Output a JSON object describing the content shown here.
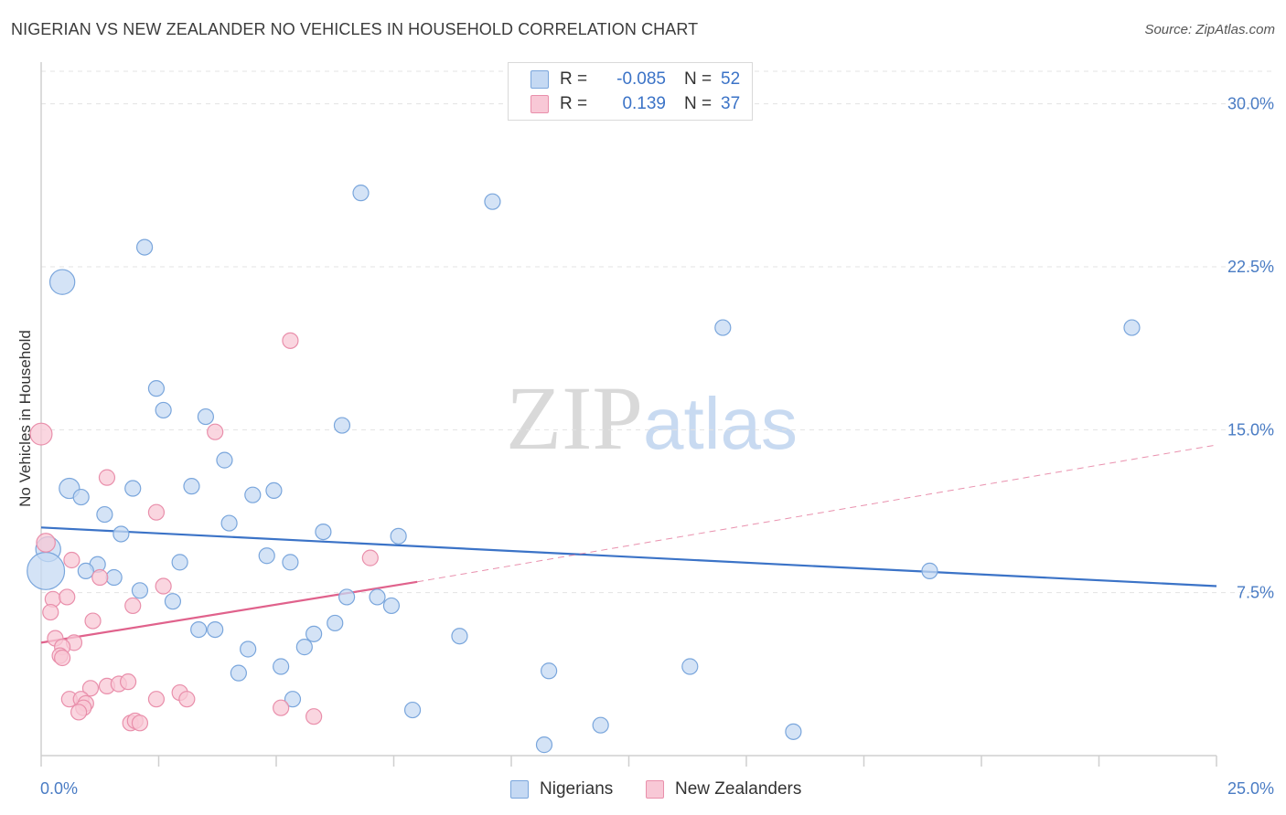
{
  "title": "NIGERIAN VS NEW ZEALANDER NO VEHICLES IN HOUSEHOLD CORRELATION CHART",
  "source": "Source: ZipAtlas.com",
  "watermark": {
    "zip": "ZIP",
    "atlas": "atlas"
  },
  "legend": {
    "rows": [
      {
        "label": "R =",
        "r": "-0.085",
        "n_label": "N =",
        "n": "52"
      },
      {
        "label": "R =",
        "r": "0.139",
        "n_label": "N =",
        "n": "37"
      }
    ]
  },
  "bottom_legend": {
    "nigerians": "Nigerians",
    "new_zealanders": "New Zealanders"
  },
  "colors": {
    "blue_fill": "#c5d9f3",
    "blue_stroke": "#7aa6dc",
    "blue_line": "#3b73c7",
    "pink_fill": "#f8c8d6",
    "pink_stroke": "#e98fab",
    "pink_line": "#e0628c",
    "grid": "#e3e3e3",
    "axis_text": "#4a7cc4"
  },
  "chart_data": {
    "type": "scatter",
    "title": "NIGERIAN VS NEW ZEALANDER NO VEHICLES IN HOUSEHOLD CORRELATION CHART",
    "xlabel": "",
    "ylabel": "No Vehicles in Household",
    "xlim": [
      0,
      25
    ],
    "ylim": [
      0,
      31.5
    ],
    "x_tick_labels": [
      "0.0%",
      "25.0%"
    ],
    "y_ticks": [
      7.5,
      15.0,
      22.5,
      30.0
    ],
    "y_tick_labels": [
      "7.5%",
      "15.0%",
      "22.5%",
      "30.0%"
    ],
    "series": [
      {
        "name": "Nigerians",
        "r": -0.085,
        "n": 52,
        "trend": {
          "x": [
            0,
            25
          ],
          "y": [
            10.5,
            7.8
          ]
        },
        "points": [
          [
            0.45,
            21.8,
            1.6
          ],
          [
            0.15,
            9.5,
            1.6
          ],
          [
            0.1,
            8.5,
            2.4
          ],
          [
            6.8,
            25.9,
            1
          ],
          [
            9.6,
            25.5,
            1
          ],
          [
            2.2,
            23.4,
            1
          ],
          [
            14.5,
            19.7,
            1
          ],
          [
            23.2,
            19.7,
            1
          ],
          [
            2.45,
            16.9,
            1
          ],
          [
            2.6,
            15.9,
            1
          ],
          [
            3.5,
            15.6,
            1
          ],
          [
            6.4,
            15.2,
            1
          ],
          [
            3.9,
            13.6,
            1
          ],
          [
            0.6,
            12.3,
            1.3
          ],
          [
            0.85,
            11.9,
            1
          ],
          [
            1.95,
            12.3,
            1
          ],
          [
            3.2,
            12.4,
            1
          ],
          [
            4.5,
            12.0,
            1
          ],
          [
            4.95,
            12.2,
            1
          ],
          [
            1.35,
            11.1,
            1
          ],
          [
            4.0,
            10.7,
            1
          ],
          [
            1.7,
            10.2,
            1
          ],
          [
            6.0,
            10.3,
            1
          ],
          [
            7.6,
            10.1,
            1
          ],
          [
            1.2,
            8.8,
            1
          ],
          [
            2.95,
            8.9,
            1
          ],
          [
            4.8,
            9.2,
            1
          ],
          [
            5.3,
            8.9,
            1
          ],
          [
            0.95,
            8.5,
            1
          ],
          [
            1.55,
            8.2,
            1
          ],
          [
            2.1,
            7.6,
            1
          ],
          [
            2.8,
            7.1,
            1
          ],
          [
            6.5,
            7.3,
            1
          ],
          [
            7.15,
            7.3,
            1
          ],
          [
            7.45,
            6.9,
            1
          ],
          [
            3.35,
            5.8,
            1
          ],
          [
            3.7,
            5.8,
            1
          ],
          [
            5.8,
            5.6,
            1
          ],
          [
            6.25,
            6.1,
            1
          ],
          [
            8.9,
            5.5,
            1
          ],
          [
            4.4,
            4.9,
            1
          ],
          [
            5.6,
            5.0,
            1
          ],
          [
            5.1,
            4.1,
            1
          ],
          [
            4.2,
            3.8,
            1
          ],
          [
            10.8,
            3.9,
            1
          ],
          [
            13.8,
            4.1,
            1
          ],
          [
            5.35,
            2.6,
            1
          ],
          [
            7.9,
            2.1,
            1
          ],
          [
            11.9,
            1.4,
            1
          ],
          [
            16.0,
            1.1,
            1
          ],
          [
            10.7,
            0.5,
            1
          ],
          [
            18.9,
            8.5,
            1
          ]
        ]
      },
      {
        "name": "New Zealanders",
        "r": 0.139,
        "n": 37,
        "trend": {
          "x": [
            0,
            8.0
          ],
          "y": [
            5.2,
            8.0
          ],
          "extension": {
            "x": [
              8.0,
              25
            ],
            "y": [
              8.0,
              14.3
            ]
          }
        },
        "points": [
          [
            0.0,
            14.8,
            1.4
          ],
          [
            0.1,
            9.8,
            1.2
          ],
          [
            5.3,
            19.1,
            1
          ],
          [
            3.7,
            14.9,
            1
          ],
          [
            1.4,
            12.8,
            1
          ],
          [
            2.45,
            11.2,
            1
          ],
          [
            0.65,
            9.0,
            1
          ],
          [
            7.0,
            9.1,
            1
          ],
          [
            1.25,
            8.2,
            1
          ],
          [
            2.6,
            7.8,
            1
          ],
          [
            0.25,
            7.2,
            1
          ],
          [
            0.55,
            7.3,
            1
          ],
          [
            1.95,
            6.9,
            1
          ],
          [
            0.2,
            6.6,
            1
          ],
          [
            1.1,
            6.2,
            1
          ],
          [
            0.3,
            5.4,
            1
          ],
          [
            0.7,
            5.2,
            1
          ],
          [
            0.45,
            5.0,
            1
          ],
          [
            0.4,
            4.6,
            1
          ],
          [
            0.45,
            4.5,
            1
          ],
          [
            1.05,
            3.1,
            1
          ],
          [
            1.4,
            3.2,
            1
          ],
          [
            1.65,
            3.3,
            1
          ],
          [
            1.85,
            3.4,
            1
          ],
          [
            2.95,
            2.9,
            1
          ],
          [
            0.6,
            2.6,
            1
          ],
          [
            0.85,
            2.6,
            1
          ],
          [
            0.95,
            2.4,
            1
          ],
          [
            0.9,
            2.2,
            1
          ],
          [
            0.8,
            2.0,
            1
          ],
          [
            2.45,
            2.6,
            1
          ],
          [
            3.1,
            2.6,
            1
          ],
          [
            5.1,
            2.2,
            1
          ],
          [
            5.8,
            1.8,
            1
          ],
          [
            1.9,
            1.5,
            1
          ],
          [
            2.0,
            1.6,
            1
          ],
          [
            2.1,
            1.5,
            1
          ]
        ]
      }
    ]
  }
}
